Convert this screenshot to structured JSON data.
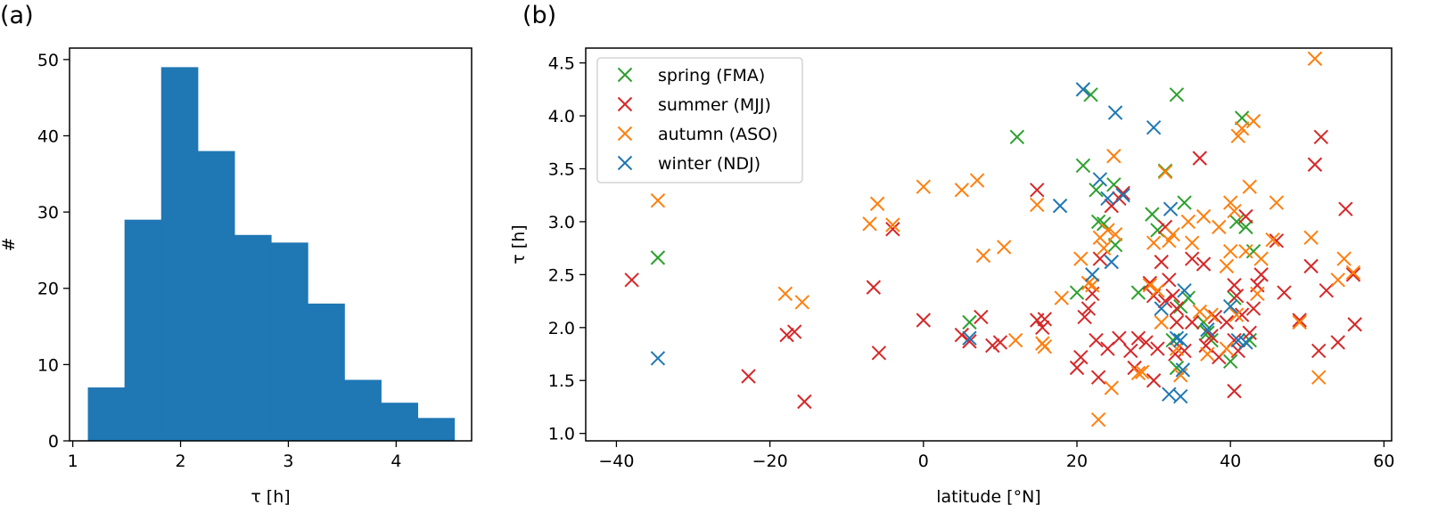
{
  "chart_data": [
    {
      "panel": "(a)",
      "type": "bar",
      "title": "",
      "xlabel": "τ [h]",
      "ylabel": "#",
      "xlim": [
        0.97,
        4.7
      ],
      "ylim": [
        0,
        51.5
      ],
      "xticks": [
        "1",
        "2",
        "3",
        "4"
      ],
      "yticks": [
        "0",
        "10",
        "20",
        "30",
        "40",
        "50"
      ],
      "bin_edges": [
        1.14,
        1.48,
        1.82,
        2.16,
        2.5,
        2.84,
        3.18,
        3.52,
        3.86,
        4.2,
        4.54
      ],
      "values": [
        7,
        29,
        49,
        38,
        27,
        26,
        18,
        8,
        5,
        3
      ],
      "color": "#1f77b4",
      "grid": false
    },
    {
      "panel": "(b)",
      "type": "scatter",
      "title": "",
      "xlabel": "latitude [°N]",
      "ylabel": "τ [h]",
      "xlim": [
        -44,
        61
      ],
      "ylim": [
        0.93,
        4.64
      ],
      "xticks": [
        "−40",
        "−20",
        "0",
        "20",
        "40",
        "60"
      ],
      "yticks": [
        "1.0",
        "1.5",
        "2.0",
        "2.5",
        "3.0",
        "3.5",
        "4.0",
        "4.5"
      ],
      "marker": "x",
      "grid": false,
      "legend_placement": "top-left",
      "series": [
        {
          "name": "spring (FMA)",
          "color": "#2ca02c",
          "points": [
            [
              -34.6,
              2.66
            ],
            [
              12.2,
              3.8
            ],
            [
              20.8,
              3.53
            ],
            [
              21.8,
              4.2
            ],
            [
              22.5,
              3.3
            ],
            [
              22.8,
              3.0
            ],
            [
              24.8,
              3.35
            ],
            [
              25.0,
              2.78
            ],
            [
              28.0,
              2.33
            ],
            [
              29.8,
              3.07
            ],
            [
              30.5,
              2.92
            ],
            [
              31.5,
              3.48
            ],
            [
              33.0,
              4.2
            ],
            [
              33.5,
              2.2
            ],
            [
              34.0,
              3.18
            ],
            [
              34.5,
              2.28
            ],
            [
              32.5,
              1.88
            ],
            [
              33.0,
              1.62
            ],
            [
              36.5,
              2.05
            ],
            [
              37.0,
              1.95
            ],
            [
              37.5,
              1.88
            ],
            [
              40.0,
              1.68
            ],
            [
              40.5,
              2.28
            ],
            [
              40.8,
              3.0
            ],
            [
              41.5,
              3.98
            ],
            [
              42.0,
              2.95
            ],
            [
              42.5,
              1.88
            ],
            [
              43.0,
              2.72
            ],
            [
              20.0,
              2.33
            ],
            [
              6.0,
              2.05
            ],
            [
              23.5,
              2.98
            ]
          ]
        },
        {
          "name": "summer (MJJ)",
          "color": "#d62728",
          "points": [
            [
              -38.0,
              2.45
            ],
            [
              -22.8,
              1.54
            ],
            [
              -17.8,
              1.93
            ],
            [
              -16.8,
              1.96
            ],
            [
              -15.5,
              1.3
            ],
            [
              -6.5,
              2.38
            ],
            [
              -5.8,
              1.76
            ],
            [
              -4.0,
              2.93
            ],
            [
              0.0,
              2.07
            ],
            [
              5.0,
              1.93
            ],
            [
              6.0,
              1.87
            ],
            [
              7.5,
              2.1
            ],
            [
              9.0,
              1.83
            ],
            [
              10.0,
              1.86
            ],
            [
              14.8,
              2.07
            ],
            [
              14.8,
              3.3
            ],
            [
              15.5,
              2.0
            ],
            [
              15.8,
              2.08
            ],
            [
              20.0,
              1.62
            ],
            [
              20.5,
              1.72
            ],
            [
              21.0,
              2.1
            ],
            [
              21.5,
              2.18
            ],
            [
              22.0,
              2.32
            ],
            [
              22.5,
              1.88
            ],
            [
              22.8,
              1.53
            ],
            [
              23.0,
              2.65
            ],
            [
              24.0,
              1.8
            ],
            [
              24.5,
              3.15
            ],
            [
              25.5,
              3.22
            ],
            [
              26.0,
              3.27
            ],
            [
              25.5,
              1.9
            ],
            [
              27.0,
              1.78
            ],
            [
              28.0,
              1.9
            ],
            [
              29.0,
              1.86
            ],
            [
              29.5,
              2.42
            ],
            [
              30.0,
              1.5
            ],
            [
              30.5,
              1.8
            ],
            [
              31.0,
              2.62
            ],
            [
              31.5,
              2.95
            ],
            [
              32.0,
              2.45
            ],
            [
              32.5,
              2.3
            ],
            [
              32.8,
              1.75
            ],
            [
              33.0,
              2.05
            ],
            [
              34.0,
              1.78
            ],
            [
              35.0,
              2.05
            ],
            [
              36.0,
              3.6
            ],
            [
              36.5,
              2.6
            ],
            [
              36.8,
              1.83
            ],
            [
              37.5,
              1.92
            ],
            [
              38.5,
              1.72
            ],
            [
              39.5,
              2.05
            ],
            [
              40.5,
              2.4
            ],
            [
              40.8,
              2.3
            ],
            [
              40.5,
              1.4
            ],
            [
              41.0,
              1.78
            ],
            [
              41.5,
              2.12
            ],
            [
              42.0,
              3.05
            ],
            [
              42.5,
              1.95
            ],
            [
              43.0,
              2.18
            ],
            [
              43.5,
              2.4
            ],
            [
              44.0,
              2.5
            ],
            [
              46.0,
              2.82
            ],
            [
              47.0,
              2.33
            ],
            [
              49.0,
              2.07
            ],
            [
              50.5,
              2.58
            ],
            [
              51.0,
              3.54
            ],
            [
              51.5,
              1.78
            ],
            [
              51.8,
              3.8
            ],
            [
              52.5,
              2.35
            ],
            [
              54.0,
              1.86
            ],
            [
              55.0,
              3.12
            ],
            [
              56.0,
              2.5
            ],
            [
              56.2,
              2.03
            ],
            [
              30.0,
              2.3
            ],
            [
              31.5,
              2.25
            ],
            [
              33.0,
              2.18
            ],
            [
              35.0,
              2.65
            ],
            [
              38.0,
              2.1
            ],
            [
              40.5,
              1.88
            ],
            [
              27.5,
              1.62
            ]
          ]
        },
        {
          "name": "autumn (ASO)",
          "color": "#ff7f0e",
          "points": [
            [
              -34.6,
              3.2
            ],
            [
              -18.0,
              2.32
            ],
            [
              -15.8,
              2.24
            ],
            [
              -7.0,
              2.98
            ],
            [
              -6.0,
              3.17
            ],
            [
              -4.0,
              2.97
            ],
            [
              0.0,
              3.33
            ],
            [
              5.0,
              3.3
            ],
            [
              7.0,
              3.39
            ],
            [
              7.8,
              2.68
            ],
            [
              10.5,
              2.76
            ],
            [
              12.0,
              1.88
            ],
            [
              14.8,
              3.16
            ],
            [
              15.5,
              1.85
            ],
            [
              15.8,
              1.82
            ],
            [
              18.0,
              2.28
            ],
            [
              20.5,
              2.65
            ],
            [
              21.5,
              2.42
            ],
            [
              22.0,
              2.4
            ],
            [
              22.8,
              1.13
            ],
            [
              23.0,
              2.85
            ],
            [
              23.5,
              2.75
            ],
            [
              24.0,
              2.92
            ],
            [
              24.5,
              1.43
            ],
            [
              24.8,
              3.62
            ],
            [
              25.0,
              2.88
            ],
            [
              28.0,
              1.57
            ],
            [
              28.5,
              1.58
            ],
            [
              29.5,
              2.4
            ],
            [
              30.0,
              2.8
            ],
            [
              30.5,
              2.35
            ],
            [
              31.0,
              2.05
            ],
            [
              31.5,
              3.47
            ],
            [
              32.0,
              2.82
            ],
            [
              32.5,
              2.88
            ],
            [
              33.0,
              1.8
            ],
            [
              33.5,
              1.55
            ],
            [
              34.5,
              3.0
            ],
            [
              35.0,
              2.8
            ],
            [
              36.0,
              2.15
            ],
            [
              36.5,
              3.05
            ],
            [
              37.0,
              1.75
            ],
            [
              37.5,
              2.12
            ],
            [
              38.5,
              2.95
            ],
            [
              39.5,
              2.58
            ],
            [
              40.0,
              3.18
            ],
            [
              40.5,
              3.1
            ],
            [
              40.8,
              2.12
            ],
            [
              41.0,
              3.81
            ],
            [
              41.5,
              3.88
            ],
            [
              42.0,
              2.72
            ],
            [
              42.5,
              3.33
            ],
            [
              43.0,
              3.95
            ],
            [
              43.5,
              2.32
            ],
            [
              44.0,
              2.65
            ],
            [
              45.5,
              2.83
            ],
            [
              46.0,
              3.18
            ],
            [
              49.0,
              2.05
            ],
            [
              50.5,
              2.85
            ],
            [
              51.0,
              4.54
            ],
            [
              51.5,
              1.53
            ],
            [
              54.0,
              2.45
            ],
            [
              54.8,
              2.65
            ],
            [
              56.0,
              2.52
            ],
            [
              39.5,
              1.8
            ],
            [
              40.0,
              2.72
            ]
          ]
        },
        {
          "name": "winter (NDJ)",
          "color": "#1f77b4",
          "points": [
            [
              -34.6,
              1.71
            ],
            [
              6.0,
              1.9
            ],
            [
              17.8,
              3.15
            ],
            [
              20.8,
              4.25
            ],
            [
              22.0,
              2.5
            ],
            [
              23.0,
              3.4
            ],
            [
              24.0,
              3.22
            ],
            [
              24.5,
              2.62
            ],
            [
              25.0,
              4.03
            ],
            [
              30.0,
              3.89
            ],
            [
              31.0,
              2.18
            ],
            [
              32.0,
              1.37
            ],
            [
              32.2,
              3.12
            ],
            [
              33.0,
              1.9
            ],
            [
              33.5,
              1.35
            ],
            [
              33.8,
              1.6
            ],
            [
              34.0,
              2.35
            ],
            [
              37.0,
              1.98
            ],
            [
              40.0,
              2.2
            ],
            [
              41.0,
              1.88
            ],
            [
              42.0,
              1.86
            ],
            [
              33.5,
              1.88
            ],
            [
              26.0,
              3.25
            ]
          ]
        }
      ]
    }
  ]
}
